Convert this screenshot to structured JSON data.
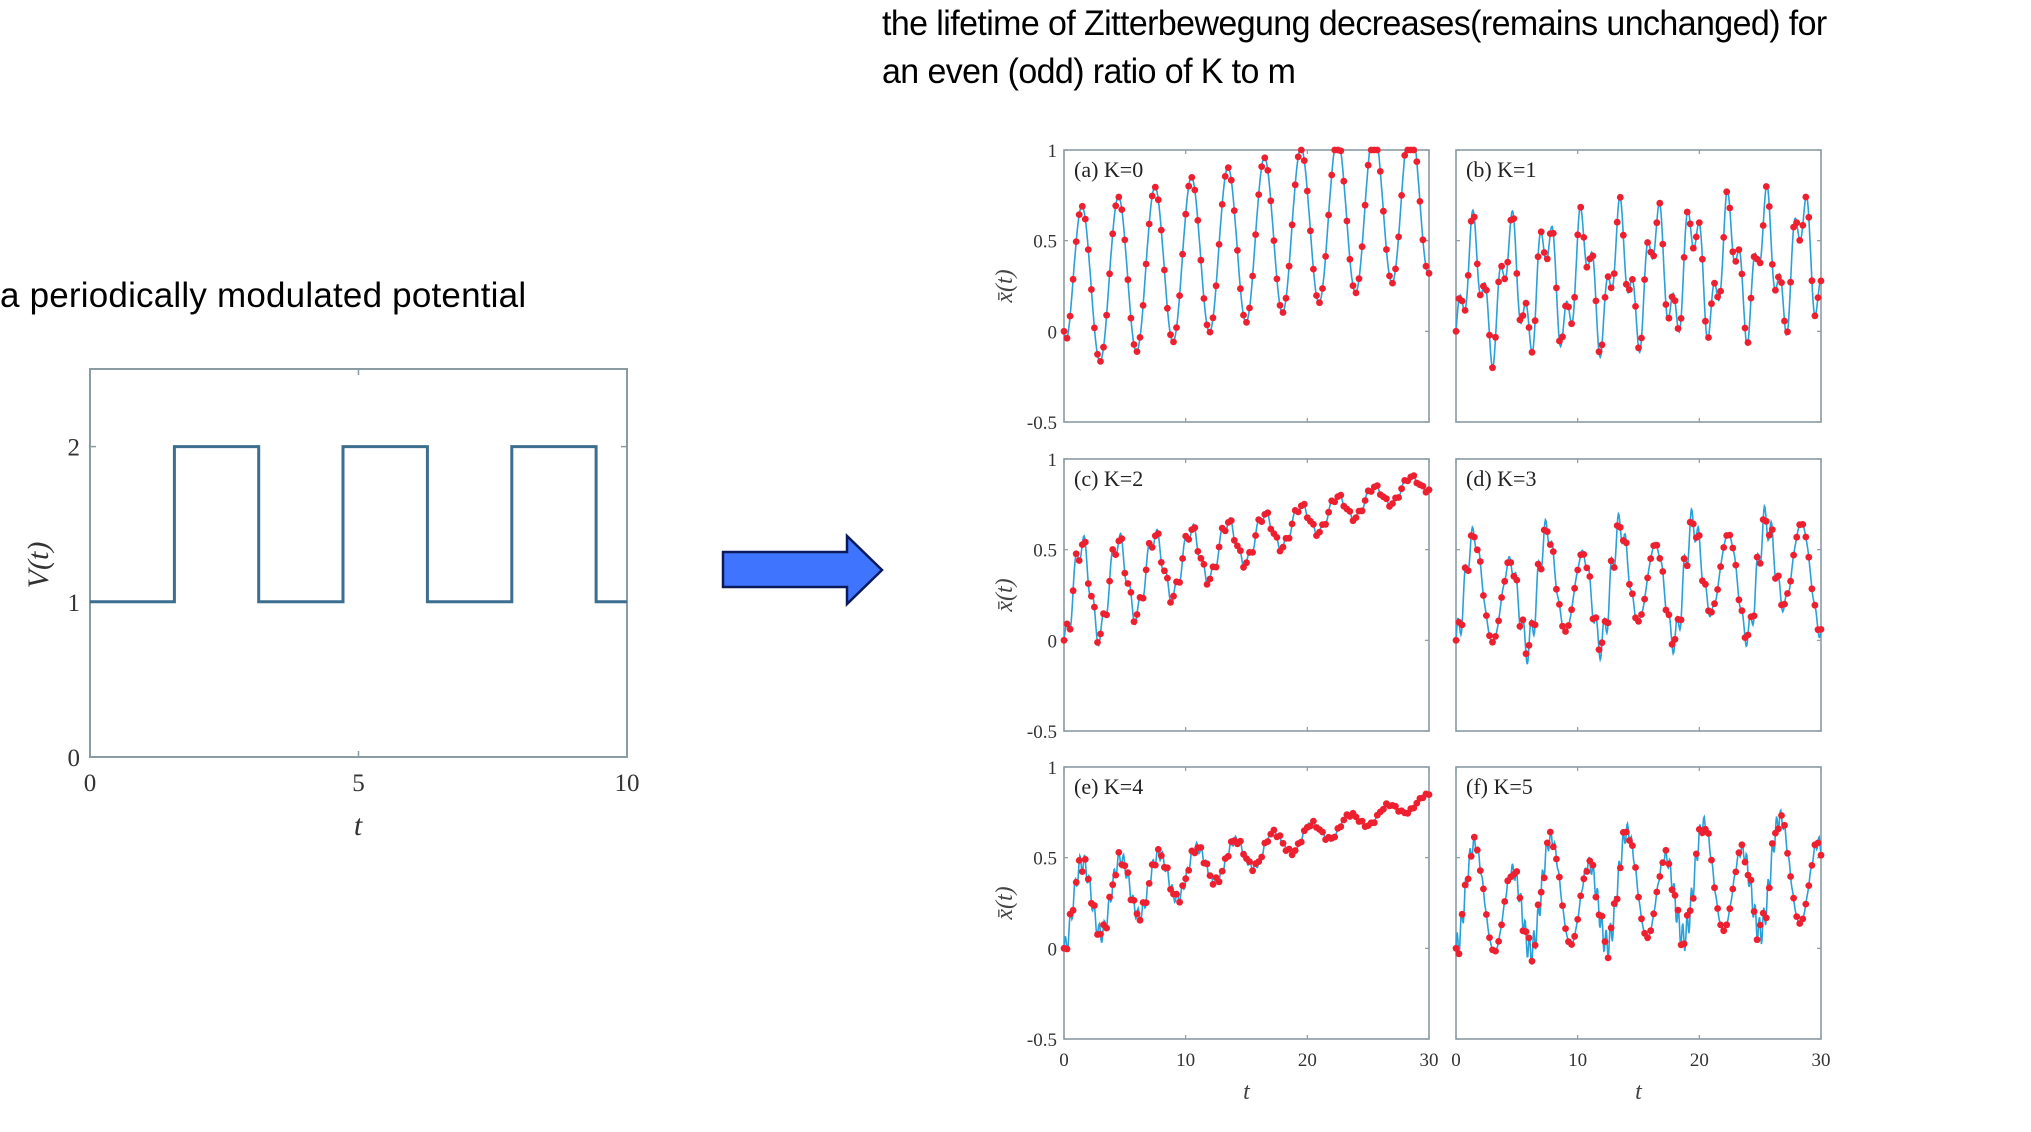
{
  "captions": {
    "left": "a periodically modulated potential",
    "right_line1": "the lifetime of Zitterbewegung decreases(remains unchanged) for",
    "right_line2": "an even (odd) ratio of K to m"
  },
  "arrow": {
    "fill": "#3f74ff",
    "stroke": "#0a1a5c",
    "direction": "right"
  },
  "chart_data": [
    {
      "type": "line",
      "id": "potential",
      "title": "",
      "xlabel": "t",
      "ylabel": "V(t)",
      "xlim": [
        0,
        10
      ],
      "ylim": [
        0,
        2.5
      ],
      "xticks": [
        0,
        5,
        10
      ],
      "yticks": [
        0,
        1,
        2
      ],
      "grid": false,
      "line_color": "#3c6e8f",
      "series": [
        {
          "name": "V(t)",
          "step": true,
          "x": [
            0,
            1.571,
            1.571,
            3.142,
            3.142,
            4.712,
            4.712,
            6.283,
            6.283,
            7.854,
            7.854,
            9.425,
            9.425,
            10
          ],
          "y": [
            1,
            1,
            2,
            2,
            1,
            1,
            2,
            2,
            1,
            1,
            2,
            2,
            1,
            1
          ]
        }
      ]
    },
    {
      "type": "line",
      "id": "zitterbewegung-panels",
      "xlabel": "t",
      "ylabel": "x̄(t)",
      "xlim": [
        0,
        30
      ],
      "ylim": [
        -0.5,
        1
      ],
      "xticks": [
        0,
        10,
        20,
        30
      ],
      "yticks": [
        -0.5,
        0,
        0.5,
        1
      ],
      "grid": false,
      "line_color": "#2aa0d8",
      "marker_color": "#ee2030",
      "panels": [
        {
          "label": "(a) K=0",
          "K": 0,
          "model": {
            "amp": 0.44,
            "period": 3.0,
            "drift": 0.018,
            "fast_amp": 0.0,
            "fast_period": 0.5,
            "beat_period": 0,
            "phase": 0
          },
          "description": "Regular oscillation, amplitude ~0.45, mean drifts from ~0.05 to ~0.5; peaks grow from 0.5 to 0.95"
        },
        {
          "label": "(b) K=1",
          "K": 1,
          "model": {
            "amp": 0.28,
            "period": 3.0,
            "drift": 0.006,
            "fast_amp": 0.16,
            "fast_period": 1.1,
            "beat_period": 0,
            "phase": 0
          },
          "description": "Irregular oscillation between ~-0.4 and ~0.8, persisting"
        },
        {
          "label": "(c) K=2",
          "K": 2,
          "model": {
            "amp": 0.3,
            "period": 3.0,
            "drift": 0.022,
            "decay": 0.06,
            "fast_amp": 0.08,
            "fast_period": 0.75,
            "beat_period": 0,
            "phase": 0
          },
          "description": "Oscillation decays while mean drifts up to ~0.75"
        },
        {
          "label": "(d) K=3",
          "K": 3,
          "model": {
            "amp": 0.26,
            "period": 3.0,
            "drift": 0.006,
            "fast_amp": 0.1,
            "fast_period": 0.6,
            "beat_period": 6.3,
            "phase": 0
          },
          "description": "Persistent oscillation with sub-structure, range ~-0.4 to ~0.75"
        },
        {
          "label": "(e) K=4",
          "K": 4,
          "model": {
            "amp": 0.25,
            "period": 3.14,
            "drift": 0.02,
            "decay": 0.07,
            "fast_amp": 0.06,
            "fast_period": 0.4,
            "beat_period": 0,
            "phase": 0
          },
          "description": "Step-like plateaus, oscillation decays, mean drifts to ~0.6"
        },
        {
          "label": "(f) K=5",
          "K": 5,
          "model": {
            "amp": 0.26,
            "period": 3.14,
            "drift": 0.006,
            "fast_amp": 0.08,
            "fast_period": 0.35,
            "beat_period": 6.3,
            "phase": 0
          },
          "description": "Persistent oscillation with fast jitter plateaus, range ~-0.4 to ~0.75"
        }
      ]
    }
  ]
}
